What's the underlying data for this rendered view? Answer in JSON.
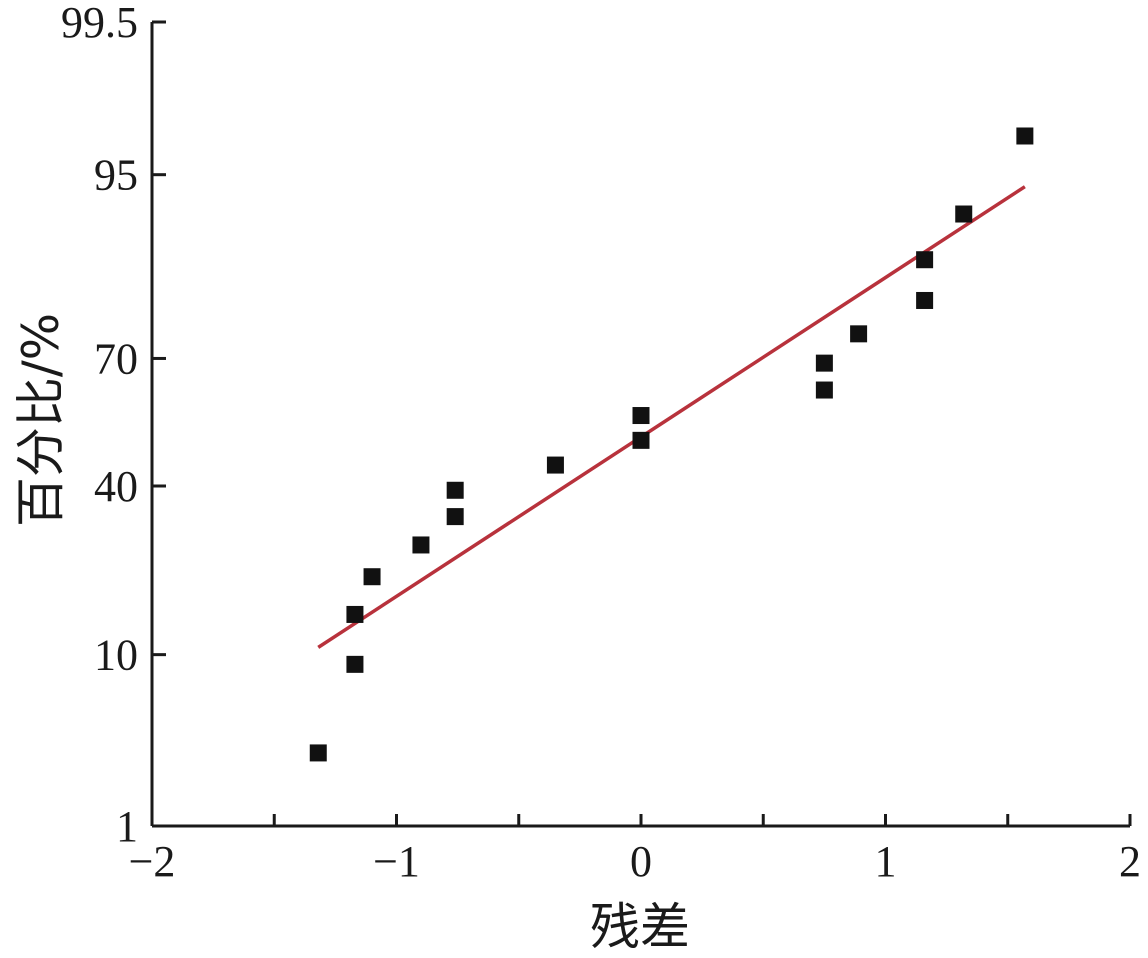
{
  "chart_data": {
    "type": "scatter",
    "scale": "normal-probability",
    "xlabel": "残差",
    "ylabel": "百分比/%",
    "xlim": [
      -2,
      2
    ],
    "ylim": [
      1,
      99.5
    ],
    "x_ticks": [
      {
        "value": -2,
        "label": "−2"
      },
      {
        "value": -1,
        "label": "−1"
      },
      {
        "value": 0,
        "label": "0"
      },
      {
        "value": 1,
        "label": "1"
      },
      {
        "value": 2,
        "label": "2"
      }
    ],
    "x_minor_ticks": [
      -1.5,
      -0.5,
      0.5,
      1.5
    ],
    "y_ticks": [
      {
        "value": 1,
        "label": "1"
      },
      {
        "value": 10,
        "label": "10"
      },
      {
        "value": 40,
        "label": "40"
      },
      {
        "value": 70,
        "label": "70"
      },
      {
        "value": 95,
        "label": "95"
      },
      {
        "value": 99.5,
        "label": "99.5"
      }
    ],
    "points": [
      {
        "x": -1.32,
        "y": 3
      },
      {
        "x": -1.17,
        "y": 9
      },
      {
        "x": -1.17,
        "y": 15
      },
      {
        "x": -1.1,
        "y": 21
      },
      {
        "x": -0.9,
        "y": 27
      },
      {
        "x": -0.76,
        "y": 33
      },
      {
        "x": -0.76,
        "y": 39
      },
      {
        "x": -0.35,
        "y": 45
      },
      {
        "x": 0.0,
        "y": 51
      },
      {
        "x": 0.0,
        "y": 57
      },
      {
        "x": 0.75,
        "y": 63
      },
      {
        "x": 0.75,
        "y": 69
      },
      {
        "x": 0.89,
        "y": 75
      },
      {
        "x": 1.16,
        "y": 81
      },
      {
        "x": 1.16,
        "y": 87
      },
      {
        "x": 1.32,
        "y": 92
      },
      {
        "x": 1.57,
        "y": 97
      }
    ],
    "fit_line": {
      "x": [
        -1.32,
        1.57
      ],
      "y": [
        10.8,
        94.2
      ]
    },
    "grid": false,
    "colors": {
      "points": "#111111",
      "fit_line": "#b8323c",
      "axis": "#1a1a1a"
    }
  }
}
